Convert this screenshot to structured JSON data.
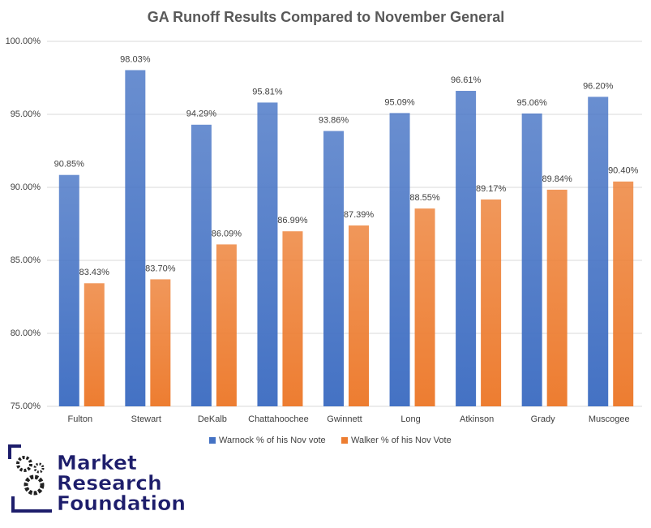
{
  "chart_data": {
    "type": "bar",
    "title": "GA Runoff Results Compared to November General",
    "categories": [
      "Fulton",
      "Stewart",
      "DeKalb",
      "Chattahoochee",
      "Gwinnett",
      "Long",
      "Atkinson",
      "Grady",
      "Muscogee"
    ],
    "series": [
      {
        "name": "Warnock % of his Nov vote",
        "color": "#4472c4",
        "values": [
          90.85,
          98.03,
          94.29,
          95.81,
          93.86,
          95.09,
          96.61,
          95.06,
          96.2
        ],
        "value_labels": [
          "90.85%",
          "98.03%",
          "94.29%",
          "95.81%",
          "93.86%",
          "95.09%",
          "96.61%",
          "95.06%",
          "96.20%"
        ]
      },
      {
        "name": "Walker % of his Nov Vote",
        "color": "#ed7d31",
        "values": [
          83.43,
          83.7,
          86.09,
          86.99,
          87.39,
          88.55,
          89.17,
          89.84,
          90.4
        ],
        "value_labels": [
          "83.43%",
          "83.70%",
          "86.09%",
          "86.99%",
          "87.39%",
          "88.55%",
          "89.17%",
          "89.84%",
          "90.40%"
        ]
      }
    ],
    "ylim": [
      75,
      100
    ],
    "yticks": [
      {
        "value": 75,
        "label": "75.00%"
      },
      {
        "value": 80,
        "label": "80.00%"
      },
      {
        "value": 85,
        "label": "85.00%"
      },
      {
        "value": 90,
        "label": "90.00%"
      },
      {
        "value": 95,
        "label": "95.00%"
      },
      {
        "value": 100,
        "label": "100.00%"
      }
    ],
    "grid": true,
    "legend": "bottom"
  },
  "logo": [
    "Market",
    "Research",
    "Foundation"
  ]
}
